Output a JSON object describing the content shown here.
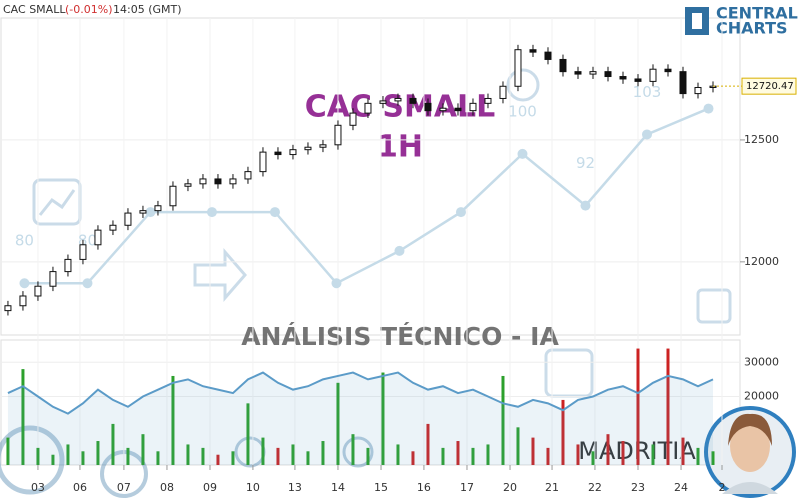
{
  "header": {
    "symbol": "CAC SMALL",
    "change": "(-0.01%)",
    "time": "14:05 (GMT)"
  },
  "logo": {
    "line1": "CENTRAL",
    "line2": "CHARTS"
  },
  "watermark": {
    "title": "CAC SMALL",
    "timeframe": "1H",
    "caption": "ANÁLISIS TÉCNICO - IA",
    "brand": "MADRITIA"
  },
  "chart_data": {
    "type": "candlestick",
    "xlim": [
      -0.53,
      51.2
    ],
    "xticks": [
      {
        "value": 2,
        "label": "03"
      },
      {
        "value": 4.8,
        "label": "06"
      },
      {
        "value": 7.73,
        "label": "07"
      },
      {
        "value": 10.6,
        "label": "08"
      },
      {
        "value": 13.47,
        "label": "09"
      },
      {
        "value": 16.33,
        "label": "10"
      },
      {
        "value": 19.13,
        "label": "13"
      },
      {
        "value": 22,
        "label": "14"
      },
      {
        "value": 24.87,
        "label": "15"
      },
      {
        "value": 27.73,
        "label": "16"
      },
      {
        "value": 30.6,
        "label": "17"
      },
      {
        "value": 33.47,
        "label": "20"
      },
      {
        "value": 36.27,
        "label": "21"
      },
      {
        "value": 39.13,
        "label": "22"
      },
      {
        "value": 42,
        "label": "23"
      },
      {
        "value": 44.87,
        "label": "24"
      },
      {
        "value": 47.6,
        "label": "2"
      }
    ],
    "ylim": [
      11700,
      13000
    ],
    "yticks": [
      12000,
      12500
    ],
    "last_price": 12720.47,
    "open": [
      11800,
      11820,
      11860,
      11900,
      11960,
      12010,
      12070,
      12130,
      12150,
      12200,
      12210,
      12230,
      12310,
      12320,
      12340,
      12320,
      12340,
      12370,
      12450,
      12440,
      12460,
      12470,
      12480,
      12560,
      12610,
      12650,
      12660,
      12670,
      12650,
      12620,
      12630,
      12620,
      12650,
      12670,
      12720,
      12870,
      12860,
      12830,
      12780,
      12770,
      12780,
      12760,
      12750,
      12740,
      12790,
      12780,
      12690,
      12715
    ],
    "high": [
      11840,
      11880,
      11920,
      11980,
      12030,
      12090,
      12150,
      12170,
      12220,
      12230,
      12250,
      12330,
      12340,
      12360,
      12360,
      12360,
      12390,
      12470,
      12470,
      12480,
      12490,
      12500,
      12580,
      12630,
      12670,
      12680,
      12690,
      12690,
      12670,
      12650,
      12650,
      12670,
      12690,
      12740,
      12890,
      12890,
      12880,
      12850,
      12800,
      12800,
      12800,
      12780,
      12770,
      12810,
      12810,
      12800,
      12735,
      12740
    ],
    "low": [
      11780,
      11800,
      11840,
      11880,
      11940,
      11990,
      12050,
      12110,
      12130,
      12180,
      12190,
      12210,
      12290,
      12300,
      12300,
      12300,
      12320,
      12350,
      12420,
      12420,
      12440,
      12450,
      12460,
      12540,
      12590,
      12630,
      12640,
      12630,
      12600,
      12600,
      12600,
      12600,
      12630,
      12650,
      12700,
      12840,
      12810,
      12760,
      12750,
      12750,
      12740,
      12730,
      12720,
      12720,
      12760,
      12670,
      12670,
      12695
    ],
    "close": [
      11820,
      11860,
      11900,
      11960,
      12010,
      12070,
      12130,
      12150,
      12200,
      12210,
      12230,
      12310,
      12320,
      12340,
      12320,
      12340,
      12370,
      12450,
      12440,
      12460,
      12470,
      12480,
      12560,
      12610,
      12650,
      12660,
      12670,
      12650,
      12620,
      12630,
      12620,
      12650,
      12670,
      12720,
      12870,
      12860,
      12830,
      12780,
      12770,
      12780,
      12760,
      12750,
      12740,
      12790,
      12780,
      12690,
      12715,
      12720.47
    ],
    "score": {
      "color": "#c5dbe8",
      "ylim": [
        72,
        121
      ],
      "x": [
        1.1,
        5.3,
        9.5,
        13.6,
        17.8,
        21.9,
        26.1,
        30.2,
        34.3,
        38.5,
        42.6,
        46.7
      ],
      "values": [
        80,
        80,
        91,
        91,
        91,
        80,
        85,
        91,
        100,
        92,
        103,
        107
      ],
      "value_labels": [
        "80",
        "80",
        null,
        null,
        null,
        null,
        null,
        null,
        "100",
        "92",
        "103",
        null
      ]
    },
    "volume": {
      "ylim": [
        0,
        36500
      ],
      "yticks": [
        20000,
        30000
      ],
      "up_color": "#2ca02c",
      "down_color": "#cc2222",
      "line_color": "#5b9bc8",
      "values": [
        8000,
        28000,
        5000,
        3000,
        6000,
        4000,
        7000,
        12000,
        5000,
        9000,
        4000,
        26000,
        6000,
        5000,
        3000,
        4000,
        18000,
        8000,
        5000,
        6000,
        4000,
        7000,
        24000,
        9000,
        5000,
        27000,
        6000,
        4000,
        12000,
        5000,
        7000,
        5000,
        6000,
        26000,
        11000,
        8000,
        5000,
        19000,
        6000,
        4000,
        9000,
        7000,
        34000,
        6000,
        34000,
        8000,
        5000,
        4000
      ],
      "average": [
        21000,
        23000,
        20000,
        17000,
        15000,
        18000,
        22000,
        19000,
        17000,
        20000,
        22000,
        24000,
        25000,
        23000,
        22000,
        21000,
        25000,
        27000,
        24000,
        22000,
        23000,
        25000,
        26000,
        27000,
        25000,
        26000,
        27000,
        24000,
        22000,
        23000,
        21000,
        22000,
        20000,
        18000,
        17000,
        19000,
        18000,
        16000,
        19000,
        20000,
        22000,
        23000,
        21000,
        24000,
        26000,
        25000,
        23000,
        25000
      ]
    }
  }
}
